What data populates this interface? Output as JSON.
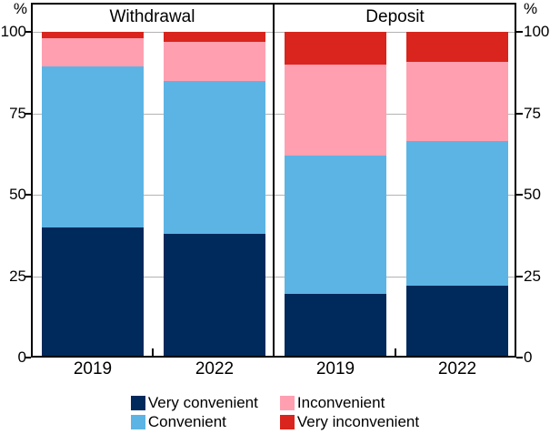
{
  "chart_data": {
    "type": "bar",
    "stacked": true,
    "unit": "%",
    "axis_unit_label_left": "%",
    "axis_unit_label_right": "%",
    "ylim": [
      0,
      100
    ],
    "yticks": [
      0,
      25,
      50,
      75,
      100
    ],
    "grid": "horizontal",
    "gridline_color": "#b3b3b3",
    "legend_position": "bottom",
    "panels": [
      {
        "title": "Withdrawal",
        "categories": [
          "2019",
          "2022"
        ],
        "series": [
          {
            "name": "Very convenient",
            "values": [
              40,
              38
            ]
          },
          {
            "name": "Convenient",
            "values": [
              49.5,
              47
            ]
          },
          {
            "name": "Inconvenient",
            "values": [
              8.5,
              12
            ]
          },
          {
            "name": "Very inconvenient",
            "values": [
              2,
              3
            ]
          }
        ]
      },
      {
        "title": "Deposit",
        "categories": [
          "2019",
          "2022"
        ],
        "series": [
          {
            "name": "Very convenient",
            "values": [
              19.5,
              22
            ]
          },
          {
            "name": "Convenient",
            "values": [
              42.5,
              44.5
            ]
          },
          {
            "name": "Inconvenient",
            "values": [
              28,
              24.5
            ]
          },
          {
            "name": "Very inconvenient",
            "values": [
              10,
              9
            ]
          }
        ]
      }
    ],
    "series_order": [
      "Very convenient",
      "Convenient",
      "Inconvenient",
      "Very inconvenient"
    ],
    "colors": {
      "Very convenient": "#002a5c",
      "Convenient": "#5cb4e5",
      "Inconvenient": "#ff9fb0",
      "Very inconvenient": "#d9251d"
    },
    "legend_columns": [
      [
        "Very convenient",
        "Convenient"
      ],
      [
        "Inconvenient",
        "Very inconvenient"
      ]
    ]
  }
}
